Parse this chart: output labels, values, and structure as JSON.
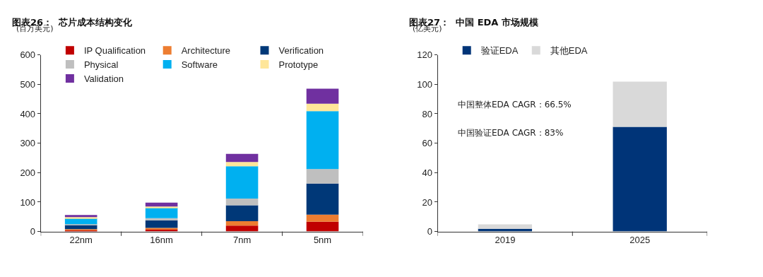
{
  "chart_data": [
    {
      "type": "bar",
      "title": "图表26：  芯片成本结构变化",
      "ylabel": "(百万美元)",
      "categories": [
        "22nm",
        "16nm",
        "7nm",
        "5nm"
      ],
      "stacked": true,
      "legend": "top left",
      "grid": false,
      "ylim": [
        0,
        600
      ],
      "yticks": [
        0,
        100,
        200,
        300,
        400,
        500,
        600
      ],
      "series": [
        {
          "name": "IP Qualification",
          "color": "#c00000",
          "values": [
            3,
            6,
            20,
            33
          ]
        },
        {
          "name": "Architecture",
          "color": "#ed7d31",
          "values": [
            5,
            6,
            15,
            24
          ]
        },
        {
          "name": "Verification",
          "color": "#003878",
          "values": [
            14,
            26,
            54,
            106
          ]
        },
        {
          "name": "Physical",
          "color": "#bfbfbf",
          "values": [
            3,
            7,
            23,
            49
          ]
        },
        {
          "name": "Software",
          "color": "#00b0f0",
          "values": [
            20,
            36,
            110,
            197
          ]
        },
        {
          "name": "Prototype",
          "color": "#ffe699",
          "values": [
            4,
            4,
            14,
            25
          ]
        },
        {
          "name": "Validation",
          "color": "#7030a0",
          "values": [
            7,
            13,
            28,
            51
          ]
        }
      ]
    },
    {
      "type": "bar",
      "title": "图表27：  中国 EDA 市场规模",
      "ylabel": "(亿美元)",
      "categories": [
        "2019",
        "2025"
      ],
      "stacked": true,
      "legend": "top left",
      "grid": false,
      "ylim": [
        0,
        120
      ],
      "yticks": [
        0,
        20,
        40,
        60,
        80,
        100,
        120
      ],
      "annotations": [
        "中国整体EDA CAGR：66.5%",
        "中国验证EDA CAGR：83%"
      ],
      "series": [
        {
          "name": "验证EDA",
          "color": "#003478",
          "values": [
            1.8,
            71.1
          ]
        },
        {
          "name": "其他EDA",
          "color": "#d9d9d9",
          "values": [
            3.1,
            30.7
          ]
        }
      ]
    }
  ]
}
